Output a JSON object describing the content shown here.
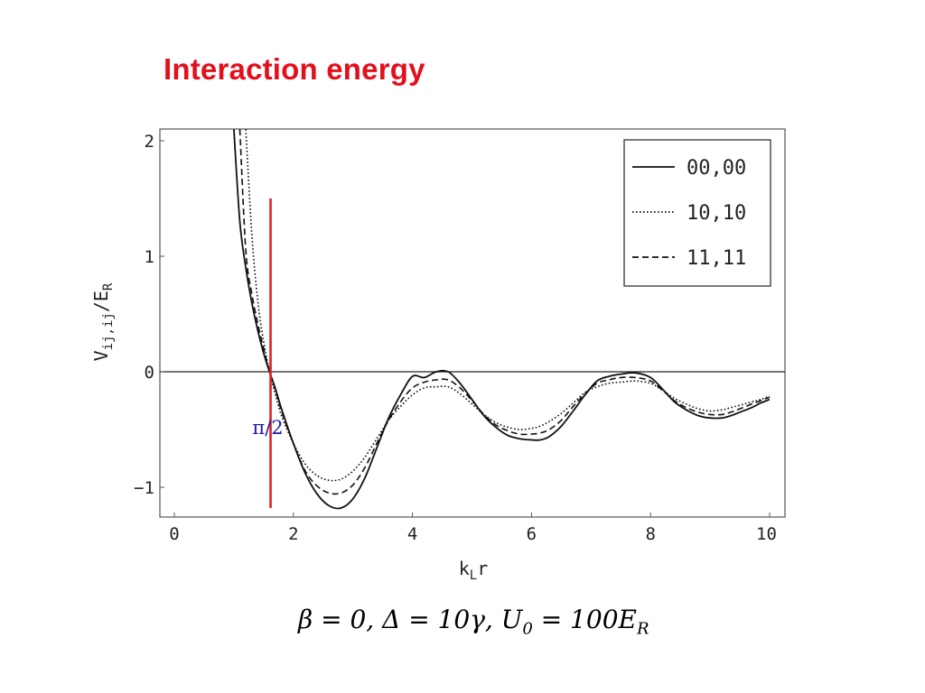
{
  "slide": {
    "title": "Interaction energy",
    "title_color": "#e3101c",
    "parameters": {
      "beta": "β = 0,",
      "delta": "Δ = 10γ,",
      "u0_main": "U",
      "u0_sub": "0",
      "u0_value": " = 100E",
      "u0_value_sub": "R"
    }
  },
  "chart_data": {
    "type": "line",
    "xlabel_main": "k",
    "xlabel_sub": "L",
    "xlabel_tail": "r",
    "ylabel_main": "V",
    "ylabel_sub1": "ij,ij",
    "ylabel_mid": "/E",
    "ylabel_sub2": "R",
    "xlim": [
      0,
      10.25
    ],
    "ylim": [
      -1.25,
      2.1
    ],
    "x_ticks": [
      0,
      2,
      4,
      6,
      8,
      10
    ],
    "x_tick_labels": [
      "0",
      "2",
      "4",
      "6",
      "8",
      "10"
    ],
    "y_ticks": [
      -1,
      0,
      1,
      2
    ],
    "y_tick_labels": [
      "−1",
      "0",
      "1",
      "2"
    ],
    "grid": false,
    "legend_position": "top-right",
    "series": [
      {
        "name": "00,00",
        "style": "solid",
        "x": [
          1.0,
          1.1,
          1.2,
          1.3,
          1.4,
          1.5,
          1.6,
          1.7,
          1.8,
          2.0,
          2.2,
          2.4,
          2.6,
          2.8,
          3.0,
          3.2,
          3.4,
          3.6,
          3.8,
          4.0,
          4.2,
          4.4,
          4.6,
          4.8,
          5.0,
          5.2,
          5.4,
          5.6,
          5.8,
          6.0,
          6.15,
          6.3,
          6.5,
          6.7,
          6.9,
          7.1,
          7.3,
          7.5,
          7.75,
          8.0,
          8.2,
          8.4,
          8.6,
          8.8,
          9.0,
          9.2,
          9.35,
          9.5,
          9.7,
          9.85,
          10.0
        ],
        "y": [
          2.1,
          1.3,
          0.9,
          0.6,
          0.36,
          0.16,
          0.0,
          -0.15,
          -0.32,
          -0.62,
          -0.88,
          -1.06,
          -1.16,
          -1.18,
          -1.1,
          -0.92,
          -0.66,
          -0.4,
          -0.2,
          -0.04,
          -0.05,
          0.0,
          0.0,
          -0.1,
          -0.24,
          -0.38,
          -0.48,
          -0.55,
          -0.58,
          -0.59,
          -0.59,
          -0.56,
          -0.47,
          -0.34,
          -0.2,
          -0.08,
          -0.04,
          -0.02,
          -0.01,
          -0.05,
          -0.15,
          -0.26,
          -0.33,
          -0.38,
          -0.4,
          -0.4,
          -0.38,
          -0.35,
          -0.31,
          -0.27,
          -0.24
        ]
      },
      {
        "name": "10,10",
        "style": "dotted",
        "x": [
          1.2,
          1.3,
          1.4,
          1.5,
          1.6,
          1.7,
          1.8,
          2.0,
          2.2,
          2.4,
          2.6,
          2.8,
          3.0,
          3.2,
          3.4,
          3.6,
          3.8,
          4.0,
          4.2,
          4.4,
          4.6,
          4.8,
          5.0,
          5.2,
          5.4,
          5.6,
          5.8,
          6.0,
          6.15,
          6.3,
          6.5,
          6.7,
          6.9,
          7.1,
          7.3,
          7.5,
          7.75,
          8.0,
          8.2,
          8.4,
          8.6,
          8.8,
          9.0,
          9.2,
          9.35,
          9.5,
          9.7,
          9.85,
          10.0
        ],
        "y": [
          2.1,
          1.2,
          0.62,
          0.26,
          0.0,
          -0.2,
          -0.38,
          -0.62,
          -0.8,
          -0.9,
          -0.94,
          -0.93,
          -0.86,
          -0.74,
          -0.58,
          -0.42,
          -0.3,
          -0.2,
          -0.14,
          -0.13,
          -0.13,
          -0.19,
          -0.28,
          -0.37,
          -0.44,
          -0.48,
          -0.5,
          -0.49,
          -0.47,
          -0.43,
          -0.36,
          -0.27,
          -0.18,
          -0.13,
          -0.1,
          -0.09,
          -0.08,
          -0.1,
          -0.16,
          -0.23,
          -0.28,
          -0.32,
          -0.34,
          -0.33,
          -0.31,
          -0.29,
          -0.26,
          -0.24,
          -0.21
        ]
      },
      {
        "name": "11,11",
        "style": "dashed",
        "x": [
          1.1,
          1.2,
          1.3,
          1.4,
          1.5,
          1.6,
          1.7,
          1.8,
          2.0,
          2.2,
          2.4,
          2.6,
          2.8,
          3.0,
          3.2,
          3.4,
          3.6,
          3.8,
          4.0,
          4.2,
          4.4,
          4.6,
          4.8,
          5.0,
          5.2,
          5.4,
          5.6,
          5.8,
          6.0,
          6.15,
          6.3,
          6.5,
          6.7,
          6.9,
          7.1,
          7.3,
          7.5,
          7.75,
          8.0,
          8.2,
          8.4,
          8.6,
          8.8,
          9.0,
          9.2,
          9.35,
          9.5,
          9.7,
          9.85,
          10.0
        ],
        "y": [
          2.1,
          1.05,
          0.68,
          0.42,
          0.2,
          0.0,
          -0.16,
          -0.34,
          -0.62,
          -0.86,
          -0.99,
          -1.05,
          -1.05,
          -0.98,
          -0.83,
          -0.62,
          -0.42,
          -0.26,
          -0.14,
          -0.09,
          -0.07,
          -0.07,
          -0.14,
          -0.25,
          -0.37,
          -0.46,
          -0.51,
          -0.54,
          -0.54,
          -0.53,
          -0.5,
          -0.42,
          -0.3,
          -0.19,
          -0.1,
          -0.07,
          -0.05,
          -0.05,
          -0.08,
          -0.16,
          -0.25,
          -0.31,
          -0.35,
          -0.37,
          -0.37,
          -0.35,
          -0.32,
          -0.28,
          -0.25,
          -0.22
        ]
      }
    ],
    "annotations": {
      "marker_x": 1.5708,
      "marker_label": "π/2",
      "marker_color": "#e02020",
      "marker_label_color": "#1a1aa8",
      "marker_range": [
        -1.18,
        1.5
      ]
    }
  }
}
